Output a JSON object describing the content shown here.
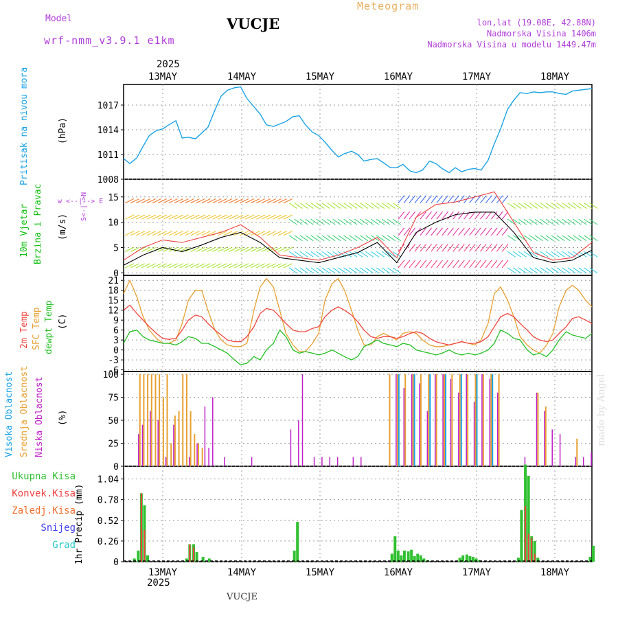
{
  "header": {
    "model_label": "Model",
    "model_name": "wrf-nmm_v3.9.1 e1km",
    "station": "VUCJE",
    "meteogram": "Meteogram",
    "lonlat": "lon,lat (19.08E, 42.88N)",
    "altitude": "Nadmorska Visina 1406m",
    "model_altitude": "Nadmorska Visina u modelu 1449.47m",
    "year": "2025",
    "footer_station": "VUCJE",
    "watermark": "made by Angel"
  },
  "colors": {
    "pressure": "#1aa3e6",
    "t2m": "#f0443c",
    "sfc": "#e8a030",
    "dew": "#22c022",
    "high_cloud": "#1aa3e6",
    "mid_cloud": "#e8a030",
    "low_cloud": "#c020c8",
    "total_precip": "#30c030",
    "convective_precip": "#f04040",
    "frozen_precip": "#f07030",
    "snow": "#4040f0",
    "graupel": "#20c8c8",
    "wind_label": "#10c010",
    "wind_speed_line": "#000000",
    "wind_gust": "#f04040"
  },
  "chart_data": [
    {
      "type": "line",
      "panel": "pressure",
      "days": [
        "13MAY",
        "14MAY",
        "15MAY",
        "16MAY",
        "17MAY",
        "18MAY"
      ],
      "ylabel": "Pritisak na nivou mora",
      "unit": "(hPa)",
      "yticks": [
        1008,
        1011,
        1014,
        1017
      ],
      "ylim": [
        1008,
        1019.5
      ],
      "series": [
        {
          "x": [
            -0.5,
            -0.42,
            -0.33,
            -0.25,
            -0.17,
            -0.08,
            0,
            0.08,
            0.17,
            0.25,
            0.33,
            0.42,
            0.5,
            0.58,
            0.67,
            0.75,
            0.83,
            0.92,
            1.0,
            1.08,
            1.17,
            1.25,
            1.33,
            1.42,
            1.5,
            1.58,
            1.67,
            1.75,
            1.83,
            1.92,
            2.0,
            2.08,
            2.17,
            2.25,
            2.33,
            2.42,
            2.5,
            2.58,
            2.67,
            2.75,
            2.83,
            2.92,
            3.0,
            3.08,
            3.17,
            3.25,
            3.33,
            3.42,
            3.5,
            3.58,
            3.67,
            3.75,
            3.83,
            3.92,
            4.0,
            4.08,
            4.17,
            4.25,
            4.33,
            4.42,
            4.5,
            4.58,
            4.67,
            4.75,
            4.83,
            4.92,
            5.0,
            5.08,
            5.17,
            5.25,
            5.5
          ],
          "values": [
            1010.5,
            1009.9,
            1010.6,
            1012.0,
            1013.3,
            1013.9,
            1014.1,
            1014.6,
            1015.1,
            1013.0,
            1013.1,
            1012.9,
            1013.6,
            1014.3,
            1016.4,
            1018.1,
            1018.8,
            1019.1,
            1019.2,
            1017.8,
            1016.8,
            1015.9,
            1014.6,
            1014.4,
            1014.7,
            1015.0,
            1015.6,
            1015.7,
            1014.6,
            1013.7,
            1013.3,
            1012.5,
            1011.5,
            1010.7,
            1011.1,
            1011.4,
            1011.0,
            1010.2,
            1010.4,
            1010.5,
            1010.0,
            1009.4,
            1009.4,
            1009.8,
            1009.0,
            1008.8,
            1009.1,
            1010.2,
            1009.9,
            1009.3,
            1008.8,
            1009.4,
            1008.9,
            1009.2,
            1009.3,
            1009.1,
            1010.3,
            1012.3,
            1014.1,
            1016.5,
            1017.6,
            1018.5,
            1018.4,
            1018.6,
            1018.5,
            1018.6,
            1018.6,
            1018.4,
            1018.3,
            1018.7,
            1019.0
          ]
        }
      ]
    },
    {
      "type": "line",
      "panel": "wind",
      "ylabel": "10m Vjetar Brzina i Pravac",
      "unit": "(m/s)",
      "direction_legend": "w <--|--> E",
      "direction_legend_vertical": "S<-|->N",
      "yticks": [
        0,
        5,
        10,
        15
      ],
      "ylim": [
        -0.5,
        18.5
      ],
      "series": [
        {
          "name": "speed",
          "x": [
            -0.5,
            -0.25,
            0,
            0.25,
            0.5,
            0.75,
            1.0,
            1.25,
            1.5,
            1.75,
            2.0,
            2.25,
            2.5,
            2.75,
            3.0,
            3.25,
            3.5,
            3.75,
            4.0,
            4.25,
            4.5,
            4.75,
            5.0,
            5.25,
            5.5
          ],
          "values": [
            1.5,
            3.5,
            5,
            4.2,
            5.5,
            7,
            8,
            6,
            3,
            2.5,
            2,
            3,
            4,
            6,
            2,
            8,
            10,
            11.5,
            12,
            12,
            8,
            3,
            2,
            2.5,
            4.5
          ]
        },
        {
          "name": "gust",
          "x": [
            -0.5,
            -0.25,
            0,
            0.25,
            0.5,
            0.75,
            1.0,
            1.25,
            1.5,
            1.75,
            2.0,
            2.25,
            2.5,
            2.75,
            3.0,
            3.25,
            3.5,
            3.75,
            4.0,
            4.25,
            4.5,
            4.75,
            5.0,
            5.25,
            5.5
          ],
          "values": [
            2.5,
            5,
            6.5,
            6,
            7,
            8,
            9.5,
            7,
            3.5,
            3,
            2.5,
            3.5,
            5,
            7,
            3,
            11,
            13.5,
            14,
            15,
            16,
            10,
            4,
            2.5,
            3,
            6
          ]
        }
      ]
    },
    {
      "type": "line",
      "panel": "temperature",
      "ylabel": "2m Temp / SFC Temp / dewpt Temp",
      "unit": "(C)",
      "yticks": [
        -6,
        -3,
        0,
        3,
        6,
        9,
        12,
        15,
        18,
        21
      ],
      "ylim": [
        -6.5,
        22.5
      ],
      "series": [
        {
          "name": "2m Temp",
          "x": [
            -0.5,
            -0.42,
            -0.33,
            -0.25,
            -0.17,
            -0.08,
            0,
            0.08,
            0.17,
            0.25,
            0.33,
            0.42,
            0.5,
            0.58,
            0.67,
            0.75,
            0.83,
            0.92,
            1.0,
            1.08,
            1.17,
            1.25,
            1.33,
            1.42,
            1.5,
            1.58,
            1.67,
            1.75,
            1.83,
            1.92,
            2.0,
            2.08,
            2.17,
            2.25,
            2.33,
            2.42,
            2.5,
            2.58,
            2.67,
            2.75,
            2.83,
            2.92,
            3.0,
            3.08,
            3.17,
            3.25,
            3.33,
            3.42,
            3.5,
            3.58,
            3.67,
            3.75,
            3.83,
            3.92,
            4.0,
            4.08,
            4.17,
            4.25,
            4.33,
            4.42,
            4.5,
            4.58,
            4.67,
            4.75,
            4.83,
            4.92,
            5.0,
            5.08,
            5.17,
            5.25,
            5.33,
            5.42,
            5.5
          ],
          "values": [
            12,
            13.5,
            11,
            9,
            7,
            5,
            3.5,
            3.2,
            3.5,
            6,
            9,
            10.5,
            10,
            8,
            6,
            4.5,
            3,
            2.5,
            2.5,
            4,
            7,
            11,
            12.5,
            12,
            10,
            8,
            6,
            5.5,
            5.5,
            6.5,
            7,
            10,
            12,
            13,
            12,
            10.5,
            8.5,
            6,
            4,
            3.5,
            4,
            4,
            3.5,
            4,
            5,
            5.5,
            5,
            3.5,
            2.5,
            2,
            1.5,
            2,
            2.5,
            2,
            2,
            2.5,
            4,
            7,
            10,
            11,
            10,
            8,
            6,
            4,
            3,
            2.5,
            3,
            5,
            7,
            9.5,
            10,
            9,
            8
          ]
        },
        {
          "name": "SFC Temp",
          "x": [
            -0.5,
            -0.42,
            -0.33,
            -0.25,
            -0.17,
            -0.08,
            0,
            0.08,
            0.17,
            0.25,
            0.33,
            0.42,
            0.5,
            0.58,
            0.67,
            0.75,
            0.83,
            0.92,
            1.0,
            1.08,
            1.17,
            1.25,
            1.33,
            1.42,
            1.5,
            1.58,
            1.67,
            1.75,
            1.83,
            1.92,
            2.0,
            2.08,
            2.17,
            2.25,
            2.33,
            2.42,
            2.5,
            2.58,
            2.67,
            2.75,
            2.83,
            2.92,
            3.0,
            3.08,
            3.17,
            3.25,
            3.33,
            3.42,
            3.5,
            3.58,
            3.67,
            3.75,
            3.83,
            3.92,
            4.0,
            4.08,
            4.17,
            4.25,
            4.33,
            4.42,
            4.5,
            4.58,
            4.67,
            4.75,
            4.83,
            4.92,
            5.0,
            5.08,
            5.17,
            5.25,
            5.33,
            5.42,
            5.5
          ],
          "values": [
            17,
            21,
            16,
            10,
            6,
            3.5,
            2,
            2,
            3,
            8,
            15,
            18,
            18,
            12,
            6,
            3,
            1.5,
            1,
            1,
            2,
            12,
            19,
            21.5,
            19,
            12,
            5,
            1.5,
            -0.5,
            -0.5,
            2,
            5,
            15,
            20,
            21.5,
            18,
            12,
            6,
            1.5,
            1.5,
            4,
            5,
            4,
            3,
            5,
            5.5,
            5,
            3,
            1.5,
            1,
            1,
            1.5,
            2,
            2.5,
            2,
            1.5,
            3,
            8,
            17,
            19,
            15,
            10,
            4,
            1.5,
            0,
            -1,
            1.5,
            5,
            13,
            18,
            19.5,
            18,
            15,
            13
          ]
        },
        {
          "name": "dewpt Temp",
          "x": [
            -0.5,
            -0.42,
            -0.33,
            -0.25,
            -0.17,
            -0.08,
            0,
            0.08,
            0.17,
            0.25,
            0.33,
            0.42,
            0.5,
            0.58,
            0.67,
            0.75,
            0.83,
            0.92,
            1.0,
            1.08,
            1.17,
            1.25,
            1.33,
            1.42,
            1.5,
            1.58,
            1.67,
            1.75,
            1.83,
            1.92,
            2.0,
            2.08,
            2.17,
            2.25,
            2.33,
            2.42,
            2.5,
            2.58,
            2.67,
            2.75,
            2.83,
            2.92,
            3.0,
            3.08,
            3.17,
            3.25,
            3.33,
            3.42,
            3.5,
            3.58,
            3.67,
            3.75,
            3.83,
            3.92,
            4.0,
            4.08,
            4.17,
            4.25,
            4.33,
            4.42,
            4.5,
            4.58,
            4.67,
            4.75,
            4.83,
            4.92,
            5.0,
            5.08,
            5.17,
            5.25,
            5.33,
            5.42,
            5.5
          ],
          "values": [
            2,
            5.5,
            6,
            4,
            3,
            2.5,
            2,
            2,
            1.5,
            2.5,
            4,
            3.5,
            2,
            2,
            1,
            0,
            -1,
            -3,
            -4.5,
            -4,
            -2,
            -3,
            0,
            2,
            6,
            4,
            0,
            -1,
            -0.5,
            -1,
            -1.5,
            -1,
            0,
            -1,
            -2,
            -3,
            -2,
            1,
            2,
            3,
            2,
            1.5,
            1,
            2,
            1.5,
            0,
            -0.5,
            -1,
            -1.5,
            -1,
            0,
            -1,
            -1.5,
            -1,
            -1.5,
            -1,
            0,
            2,
            6,
            5,
            3.5,
            3,
            0,
            -1.5,
            -1,
            -2,
            0,
            3,
            5.5,
            4.5,
            4,
            3.5,
            5
          ]
        }
      ]
    },
    {
      "type": "bar",
      "panel": "cloud",
      "ylabel": "Visoka Oblacnost / Srednja Oblacnost / Niska Oblacnost",
      "unit": "(%)",
      "yticks": [
        0,
        25,
        50,
        75,
        100
      ],
      "ylim": [
        0,
        103
      ],
      "mid_cloud": {
        "x": [
          -0.3,
          -0.25,
          -0.2,
          -0.15,
          -0.1,
          -0.05,
          0,
          0.05,
          0.1,
          0.15,
          0.2,
          0.25,
          0.3,
          0.35,
          0.4,
          0.45,
          0.5,
          2.9,
          3.0,
          3.1,
          3.2,
          3.3,
          3.4,
          3.5,
          3.6,
          3.7,
          3.8,
          3.9,
          4.0,
          4.1,
          4.2,
          4.3,
          4.8,
          4.9,
          5.3
        ],
        "values": [
          100,
          100,
          100,
          100,
          100,
          100,
          75,
          100,
          25,
          55,
          60,
          100,
          100,
          60,
          35,
          25,
          20,
          100,
          100,
          100,
          100,
          100,
          100,
          100,
          100,
          100,
          100,
          100,
          100,
          100,
          100,
          100,
          80,
          65,
          30
        ]
      },
      "low_cloud": {
        "x": [
          -0.35,
          -0.3,
          -0.2,
          -0.1,
          0,
          0.1,
          0.3,
          0.4,
          0.5,
          0.55,
          0.6,
          0.75,
          1.1,
          1.6,
          1.7,
          1.75,
          1.9,
          2.0,
          2.1,
          2.2,
          2.4,
          2.5,
          2.95,
          3.05,
          3.15,
          3.25,
          3.35,
          3.45,
          3.55,
          3.65,
          3.75,
          3.85,
          3.95,
          4.05,
          4.15,
          4.25,
          4.6,
          4.75,
          4.85,
          4.95,
          5.05,
          5.25,
          5.35,
          5.45
        ],
        "values": [
          35,
          45,
          60,
          50,
          10,
          45,
          10,
          25,
          65,
          20,
          75,
          10,
          10,
          40,
          50,
          100,
          10,
          10,
          10,
          10,
          10,
          10,
          100,
          85,
          100,
          90,
          60,
          100,
          100,
          95,
          80,
          100,
          70,
          100,
          95,
          80,
          10,
          80,
          60,
          40,
          35,
          10,
          10,
          15
        ]
      },
      "high_cloud": {
        "x": [
          3.0,
          3.2,
          3.4,
          3.6,
          3.8,
          4.0,
          4.2
        ],
        "values": [
          100,
          100,
          100,
          100,
          100,
          100,
          100
        ]
      }
    },
    {
      "type": "bar",
      "panel": "precipitation",
      "ylabel": "1hr Precip (mm)",
      "yticks": [
        0,
        0.26,
        0.52,
        0.78,
        1.04
      ],
      "ylim": [
        0,
        1.2
      ],
      "legend": [
        "Ukupna Kisa",
        "Konvek.Kisa",
        "Zaledj.Kisa",
        "Snijeg",
        "Grad"
      ],
      "total": {
        "x": [
          -0.38,
          -0.33,
          -0.29,
          -0.25,
          -0.21,
          0.29,
          0.33,
          0.38,
          0.42,
          0.5,
          0.58,
          1.67,
          1.71,
          2.92,
          2.96,
          3.0,
          3.04,
          3.08,
          3.13,
          3.17,
          3.21,
          3.25,
          3.29,
          3.33,
          3.38,
          3.79,
          3.83,
          3.88,
          3.92,
          3.96,
          4.0,
          4.04,
          4.54,
          4.58,
          4.63,
          4.67,
          4.71,
          4.75,
          4.79,
          5.46,
          5.5
        ],
        "values": [
          0.04,
          0.14,
          0.86,
          0.71,
          0.08,
          0.04,
          0.22,
          0.22,
          0.12,
          0.06,
          0.04,
          0.14,
          0.5,
          0.1,
          0.32,
          0.14,
          0.08,
          0.14,
          0.13,
          0.15,
          0.07,
          0.1,
          0.08,
          0.04,
          0.02,
          0.05,
          0.08,
          0.09,
          0.07,
          0.06,
          0.04,
          0.02,
          0.05,
          0.65,
          1.22,
          1.08,
          0.32,
          0.26,
          0.05,
          0.06,
          0.2
        ]
      },
      "convective": {
        "x": [
          -0.29,
          -0.25,
          0.33,
          0.38,
          4.63,
          4.67,
          4.71,
          4.75
        ],
        "values": [
          0.86,
          0.4,
          0.22,
          0.18,
          0.7,
          0.35,
          0.3,
          0.1
        ]
      }
    }
  ]
}
